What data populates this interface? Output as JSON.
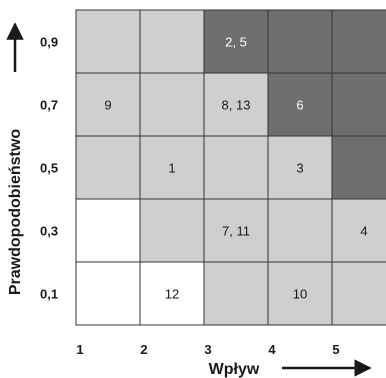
{
  "matrix": {
    "y_axis": {
      "title": "Prawdopodobieństwo",
      "ticks": [
        "0,9",
        "0,7",
        "0,5",
        "0,3",
        "0,1"
      ]
    },
    "x_axis": {
      "title": "Wpływ",
      "ticks": [
        "1",
        "2",
        "3",
        "4",
        "5"
      ]
    },
    "shades": {
      "white": "#ffffff",
      "light": "#cfcfcf",
      "dark": "#6e6e6e"
    },
    "rows": [
      {
        "y": "0,9",
        "cells": [
          {
            "x": "1",
            "shade": "light",
            "label": ""
          },
          {
            "x": "2",
            "shade": "light",
            "label": ""
          },
          {
            "x": "3",
            "shade": "dark",
            "label": "2, 5"
          },
          {
            "x": "4",
            "shade": "dark",
            "label": ""
          },
          {
            "x": "5",
            "shade": "dark",
            "label": ""
          }
        ]
      },
      {
        "y": "0,7",
        "cells": [
          {
            "x": "1",
            "shade": "light",
            "label": "9"
          },
          {
            "x": "2",
            "shade": "light",
            "label": ""
          },
          {
            "x": "3",
            "shade": "light",
            "label": "8, 13"
          },
          {
            "x": "4",
            "shade": "dark",
            "label": "6"
          },
          {
            "x": "5",
            "shade": "dark",
            "label": ""
          }
        ]
      },
      {
        "y": "0,5",
        "cells": [
          {
            "x": "1",
            "shade": "light",
            "label": ""
          },
          {
            "x": "2",
            "shade": "light",
            "label": "1"
          },
          {
            "x": "3",
            "shade": "light",
            "label": ""
          },
          {
            "x": "4",
            "shade": "light",
            "label": "3"
          },
          {
            "x": "5",
            "shade": "dark",
            "label": ""
          }
        ]
      },
      {
        "y": "0,3",
        "cells": [
          {
            "x": "1",
            "shade": "white",
            "label": ""
          },
          {
            "x": "2",
            "shade": "light",
            "label": ""
          },
          {
            "x": "3",
            "shade": "light",
            "label": "7, 11"
          },
          {
            "x": "4",
            "shade": "light",
            "label": ""
          },
          {
            "x": "5",
            "shade": "light",
            "label": "4"
          }
        ]
      },
      {
        "y": "0,1",
        "cells": [
          {
            "x": "1",
            "shade": "white",
            "label": ""
          },
          {
            "x": "2",
            "shade": "white",
            "label": "12"
          },
          {
            "x": "3",
            "shade": "light",
            "label": ""
          },
          {
            "x": "4",
            "shade": "light",
            "label": "10"
          },
          {
            "x": "5",
            "shade": "light",
            "label": ""
          }
        ]
      }
    ]
  }
}
